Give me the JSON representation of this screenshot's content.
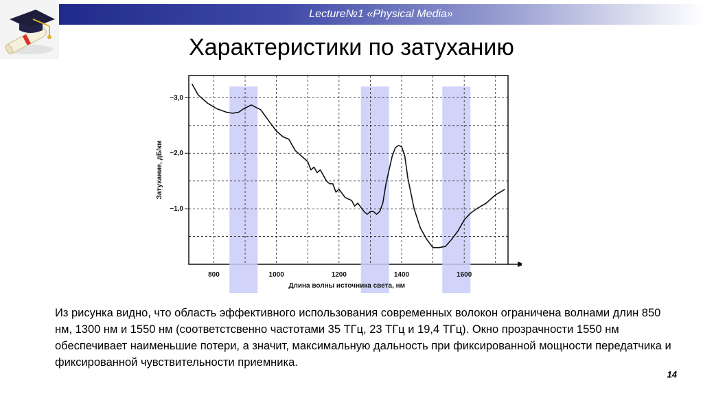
{
  "header": {
    "title": "Lecture№1 «Physical Media»"
  },
  "logo": {
    "icon": "graduation-cap-diploma-icon"
  },
  "slide": {
    "title": "Характеристики по затуханию",
    "body": "Из рисунка видно, что область эффективного использования современных волокон ограничена волнами длин 850 нм, 1300 нм и 1550 нм (соответстсвенно частотами 35 ТГц, 23 ТГц и 19,4 ТГц). Окно прозрачности 1550 нм обеспечивает наименьшие потери, а значит, максимальную дальность при фиксированной мощности передатчика и фиксированной чувствительности приемника.",
    "page_number": "14"
  },
  "chart_data": {
    "type": "line",
    "xlabel": "Длина волны источника света, нм",
    "ylabel": "Затухание, дБ/км",
    "xlim": [
      720,
      1740
    ],
    "ylim": [
      0,
      3.4
    ],
    "x_ticks": [
      "800",
      "1000",
      "1200",
      "1400",
      "1600"
    ],
    "y_ticks": [
      "3,0",
      "2,0",
      "1,0"
    ],
    "grid": true,
    "windows": [
      [
        850,
        940
      ],
      [
        1270,
        1360
      ],
      [
        1530,
        1620
      ]
    ],
    "series": [
      {
        "x": [
          730,
          750,
          780,
          810,
          840,
          860,
          880,
          895,
          920,
          950,
          980,
          1000,
          1020,
          1040,
          1060,
          1080,
          1100,
          1110,
          1120,
          1130,
          1140,
          1160,
          1170,
          1180,
          1190,
          1200,
          1220,
          1240,
          1250,
          1260,
          1280,
          1290,
          1300,
          1310,
          1320,
          1330,
          1340,
          1350,
          1370,
          1380,
          1390,
          1400,
          1410,
          1420,
          1440,
          1460,
          1480,
          1500,
          1520,
          1540,
          1560,
          1580,
          1600,
          1620,
          1640,
          1670,
          1700,
          1730
        ],
        "y": [
          3.25,
          3.05,
          2.9,
          2.8,
          2.74,
          2.72,
          2.74,
          2.8,
          2.87,
          2.78,
          2.55,
          2.4,
          2.3,
          2.25,
          2.05,
          1.95,
          1.85,
          1.7,
          1.75,
          1.65,
          1.7,
          1.5,
          1.45,
          1.45,
          1.3,
          1.35,
          1.2,
          1.15,
          1.05,
          1.1,
          0.95,
          0.9,
          0.95,
          0.95,
          0.9,
          0.95,
          1.1,
          1.45,
          1.95,
          2.1,
          2.14,
          2.12,
          1.95,
          1.55,
          1.0,
          0.65,
          0.45,
          0.3,
          0.3,
          0.32,
          0.45,
          0.6,
          0.8,
          0.92,
          1.0,
          1.1,
          1.25,
          1.35
        ]
      }
    ]
  }
}
